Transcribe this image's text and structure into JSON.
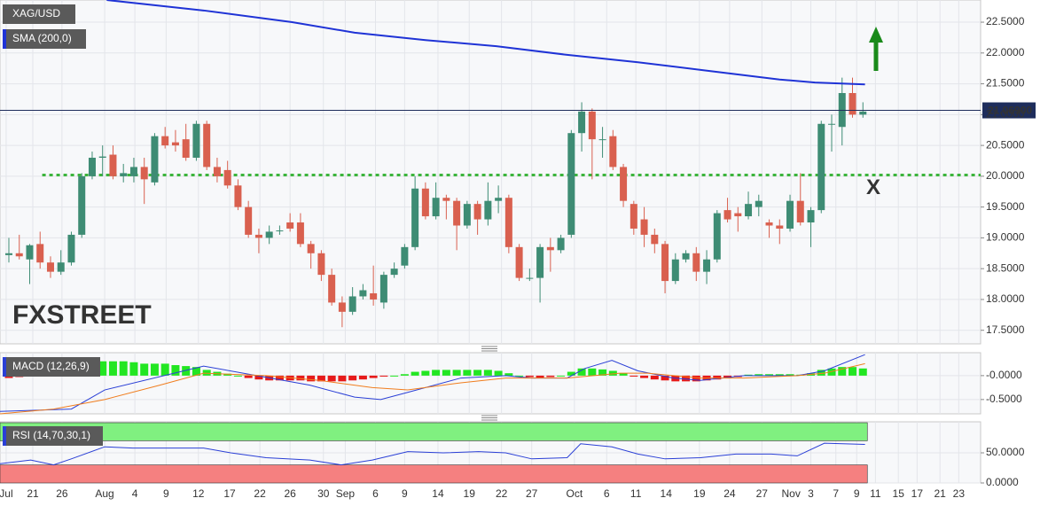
{
  "chart_data": [
    {
      "type": "candlestick",
      "label": "XAG/USD",
      "open": [
        18.72,
        18.75,
        18.65,
        18.9,
        18.6,
        18.45,
        18.6,
        19.05,
        20.0,
        20.3,
        20.35,
        20.0,
        20.0,
        20.15,
        19.9,
        20.65,
        20.55,
        20.6,
        20.3,
        20.85,
        20.15,
        20.1,
        19.85,
        19.5,
        19.05,
        19.0,
        19.12,
        19.25,
        19.25,
        18.9,
        18.75,
        18.4,
        17.95,
        17.8,
        18.05,
        18.1,
        17.95,
        18.4,
        18.55,
        18.85,
        19.8,
        19.35,
        19.65,
        19.6,
        19.2,
        19.55,
        19.3,
        19.6,
        19.65,
        18.85,
        18.35,
        18.35,
        18.85,
        18.8,
        19.05,
        20.7,
        21.05,
        20.6,
        20.65,
        20.15,
        19.55,
        19.3,
        19.05,
        18.9,
        18.3,
        18.65,
        18.75,
        18.45,
        18.65,
        19.45,
        19.4,
        19.35,
        19.5,
        19.25,
        19.2,
        19.15,
        19.6,
        19.25,
        19.45,
        20.85,
        20.8,
        21.35,
        21.0
      ],
      "high": [
        19.0,
        19.05,
        18.9,
        19.1,
        18.7,
        18.8,
        19.1,
        20.05,
        20.4,
        20.5,
        20.5,
        20.2,
        20.3,
        20.3,
        20.7,
        20.8,
        20.75,
        20.85,
        20.9,
        20.9,
        20.3,
        20.25,
        19.95,
        19.6,
        19.15,
        19.2,
        19.2,
        19.4,
        19.4,
        18.95,
        18.8,
        18.5,
        18.05,
        18.2,
        18.25,
        18.55,
        18.45,
        18.6,
        18.9,
        20.0,
        19.9,
        19.9,
        19.7,
        19.65,
        19.6,
        19.6,
        19.9,
        19.85,
        19.7,
        18.9,
        18.5,
        18.9,
        19.0,
        19.05,
        20.75,
        21.2,
        21.1,
        20.8,
        20.75,
        20.2,
        19.6,
        19.5,
        19.15,
        18.95,
        18.75,
        18.8,
        18.85,
        18.8,
        19.45,
        19.65,
        19.5,
        19.75,
        19.7,
        19.3,
        19.3,
        19.7,
        20.05,
        19.5,
        20.9,
        21.0,
        21.6,
        21.6,
        21.2
      ],
      "low": [
        18.6,
        18.65,
        18.25,
        18.5,
        18.35,
        18.4,
        18.55,
        19.0,
        19.95,
        20.0,
        19.95,
        19.9,
        19.9,
        19.55,
        19.85,
        20.45,
        20.4,
        20.25,
        20.25,
        20.1,
        19.9,
        19.8,
        19.45,
        19.0,
        18.75,
        18.9,
        19.05,
        19.1,
        18.85,
        18.5,
        18.3,
        17.9,
        17.55,
        17.75,
        18.0,
        17.9,
        17.85,
        18.35,
        18.5,
        18.8,
        19.3,
        19.3,
        19.3,
        18.8,
        19.15,
        19.05,
        19.2,
        19.4,
        18.75,
        18.3,
        18.3,
        17.95,
        18.45,
        18.75,
        19.0,
        20.4,
        19.95,
        20.3,
        20.1,
        19.5,
        19.05,
        18.85,
        18.75,
        18.1,
        18.25,
        18.6,
        18.3,
        18.25,
        18.6,
        19.25,
        19.1,
        19.3,
        19.35,
        19.0,
        18.9,
        19.1,
        19.2,
        18.85,
        19.4,
        20.4,
        20.5,
        20.95,
        20.95
      ],
      "close": [
        18.75,
        18.7,
        18.88,
        18.6,
        18.45,
        18.6,
        19.05,
        20.0,
        20.3,
        20.32,
        20.0,
        20.05,
        20.15,
        19.95,
        20.65,
        20.5,
        20.5,
        20.3,
        20.85,
        20.15,
        20.0,
        19.85,
        19.5,
        19.05,
        19.0,
        19.1,
        19.12,
        19.15,
        18.9,
        18.75,
        18.4,
        17.95,
        17.8,
        18.05,
        18.15,
        18.0,
        18.4,
        18.5,
        18.85,
        19.8,
        19.35,
        19.65,
        19.6,
        19.2,
        19.55,
        19.3,
        19.6,
        19.65,
        18.85,
        18.35,
        18.35,
        18.85,
        18.8,
        19.0,
        20.7,
        21.05,
        20.6,
        20.6,
        20.15,
        19.6,
        19.15,
        19.05,
        18.9,
        18.3,
        18.65,
        18.75,
        18.45,
        18.65,
        19.4,
        19.3,
        19.35,
        19.55,
        19.6,
        19.2,
        19.15,
        19.6,
        19.25,
        19.45,
        20.85,
        20.85,
        21.35,
        21.0,
        21.05
      ],
      "colors": {
        "up": "#3e8c74",
        "down": "#d9604f"
      },
      "sma": {
        "label": "SMA (200,0)",
        "color": "#1f33d6",
        "x": [
          9.4,
          18.7,
          27.2,
          33.2,
          40,
          46.8,
          53.6,
          60.4,
          67.2,
          74,
          77.4,
          82.2
        ],
        "values": [
          22.86,
          22.69,
          22.5,
          22.33,
          22.21,
          22.11,
          21.97,
          21.85,
          21.71,
          21.57,
          21.52,
          21.49
        ]
      },
      "last_price": {
        "value": 21.069,
        "label": "21.06900",
        "color": "#1e2d5c"
      },
      "level": {
        "value": 20.02,
        "x": 3.2,
        "color": "#3cb43c"
      },
      "annotation": {
        "text": "X",
        "x": 83,
        "y": 19.8,
        "color": "#3cb43c"
      },
      "watermark": [
        "FX",
        "STREET"
      ],
      "xlim": [
        -0.85,
        93.3
      ],
      "ylim": [
        17.28,
        22.86
      ],
      "yticks": [
        {
          "value": 17.5,
          "label": "17.5000"
        },
        {
          "value": 18,
          "label": "18.0000"
        },
        {
          "value": 18.5,
          "label": "18.5000"
        },
        {
          "value": 19,
          "label": "19.0000"
        },
        {
          "value": 19.5,
          "label": "19.5000"
        },
        {
          "value": 20,
          "label": "20.0000"
        },
        {
          "value": 20.5,
          "label": "20.5000"
        },
        {
          "value": 21,
          "label": "21.0000"
        },
        {
          "value": 21.5,
          "label": "21.5000"
        },
        {
          "value": 22,
          "label": "22.0000"
        },
        {
          "value": 22.5,
          "label": "22.5000"
        }
      ],
      "xticks": [
        {
          "value": -0.26,
          "label": "Jul"
        },
        {
          "value": 2.3,
          "label": "21"
        },
        {
          "value": 5.1,
          "label": "26"
        },
        {
          "value": 9.2,
          "label": "Aug"
        },
        {
          "value": 12.1,
          "label": "4"
        },
        {
          "value": 15.1,
          "label": "9"
        },
        {
          "value": 18.2,
          "label": "12"
        },
        {
          "value": 21.2,
          "label": "17"
        },
        {
          "value": 24.1,
          "label": "22"
        },
        {
          "value": 27,
          "label": "26"
        },
        {
          "value": 30.2,
          "label": "30"
        },
        {
          "value": 32.3,
          "label": "Sep"
        },
        {
          "value": 35.2,
          "label": "6"
        },
        {
          "value": 38,
          "label": "9"
        },
        {
          "value": 41.2,
          "label": "14"
        },
        {
          "value": 44.2,
          "label": "19"
        },
        {
          "value": 47.3,
          "label": "22"
        },
        {
          "value": 50.2,
          "label": "27"
        },
        {
          "value": 54.3,
          "label": "Oct"
        },
        {
          "value": 57.4,
          "label": "6"
        },
        {
          "value": 60.2,
          "label": "11"
        },
        {
          "value": 63.1,
          "label": "14"
        },
        {
          "value": 66.3,
          "label": "19"
        },
        {
          "value": 69.2,
          "label": "24"
        },
        {
          "value": 72.3,
          "label": "27"
        },
        {
          "value": 75.1,
          "label": "Nov"
        },
        {
          "value": 77,
          "label": "3"
        },
        {
          "value": 79.4,
          "label": "7"
        },
        {
          "value": 81.4,
          "label": "9"
        },
        {
          "value": 83.2,
          "label": "11"
        },
        {
          "value": 85.4,
          "label": "15"
        },
        {
          "value": 87.2,
          "label": "17"
        },
        {
          "value": 89.4,
          "label": "21"
        },
        {
          "value": 91.2,
          "label": "23"
        }
      ],
      "grid": true
    },
    {
      "type": "macd",
      "label": "MACD (12,26,9)",
      "histogram": [
        -0.05,
        -0.03,
        0.02,
        0.03,
        0.03,
        0.05,
        0.1,
        0.2,
        0.28,
        0.3,
        0.3,
        0.3,
        0.28,
        0.25,
        0.25,
        0.25,
        0.22,
        0.2,
        0.18,
        0.12,
        0.08,
        0.04,
        0.0,
        -0.05,
        -0.08,
        -0.1,
        -0.1,
        -0.1,
        -0.1,
        -0.12,
        -0.12,
        -0.12,
        -0.12,
        -0.1,
        -0.08,
        -0.05,
        -0.02,
        0.0,
        0.03,
        0.08,
        0.1,
        0.12,
        0.12,
        0.12,
        0.12,
        0.12,
        0.12,
        0.1,
        0.05,
        0.0,
        -0.03,
        -0.04,
        -0.03,
        0.0,
        0.08,
        0.15,
        0.15,
        0.13,
        0.1,
        0.05,
        -0.02,
        -0.05,
        -0.08,
        -0.1,
        -0.12,
        -0.12,
        -0.12,
        -0.1,
        -0.08,
        -0.05,
        -0.03,
        0.02,
        0.03,
        0.03,
        0.03,
        0.03,
        0.02,
        0.05,
        0.12,
        0.15,
        0.18,
        0.18,
        0.15
      ],
      "hist_colors": {
        "up": "#22e622",
        "down": "#e61a1a"
      },
      "lines": [
        {
          "color": "#2a3fd6",
          "x": [
            -0.85,
            6,
            9.2,
            18.7,
            23.8,
            28.9,
            33.2,
            35.7,
            38.3,
            43.4,
            47.7,
            50.2,
            53.6,
            55.3,
            57.9,
            60.4,
            63.8,
            66.4,
            70.6,
            75.7,
            78.3,
            82.2
          ],
          "values": [
            -0.75,
            -0.7,
            -0.3,
            0.2,
            0.0,
            -0.2,
            -0.45,
            -0.5,
            -0.35,
            -0.05,
            0.0,
            -0.05,
            -0.05,
            0.15,
            0.32,
            0.1,
            -0.05,
            -0.1,
            0.0,
            0.0,
            0.1,
            0.44
          ]
        },
        {
          "color": "#f07d1e",
          "x": [
            -0.85,
            4.3,
            9.2,
            14.5,
            18.7,
            24.7,
            29.8,
            34.9,
            38.3,
            43.4,
            47.7,
            53.6,
            58.7,
            61.3,
            66.4,
            70.6,
            75.7,
            78.3,
            82.2
          ],
          "values": [
            -0.8,
            -0.7,
            -0.5,
            -0.2,
            0.05,
            0.0,
            -0.1,
            -0.25,
            -0.3,
            -0.15,
            -0.05,
            -0.05,
            0.05,
            0.05,
            -0.05,
            -0.05,
            0.0,
            0.05,
            0.25
          ]
        }
      ],
      "ylim": [
        -0.8,
        0.48
      ],
      "yticks": [
        {
          "value": -0.5,
          "label": "-0.5000"
        },
        {
          "value": 0,
          "label": "-0.0000"
        }
      ],
      "grid": true
    },
    {
      "type": "line",
      "label": "RSI (14,70,30,1)",
      "line": {
        "color": "#2a3fd6",
        "x": [
          -0.85,
          2.1,
          4.3,
          6,
          9.2,
          11.9,
          16.2,
          18.7,
          21.3,
          24.7,
          28.9,
          31.9,
          34.9,
          38.3,
          41.7,
          45.1,
          47.7,
          50.2,
          53.6,
          54.9,
          57.9,
          60.4,
          63,
          66.4,
          69.8,
          73.2,
          75.7,
          78.3,
          82.2
        ],
        "values": [
          32,
          38,
          30,
          40,
          60,
          58,
          58,
          58,
          50,
          42,
          38,
          30,
          38,
          52,
          50,
          52,
          50,
          40,
          42,
          65,
          60,
          48,
          40,
          42,
          48,
          48,
          45,
          66,
          64
        ]
      },
      "bands": [
        {
          "from": 70,
          "to": 100,
          "color": "#80f080"
        },
        {
          "from": 0,
          "to": 30,
          "color": "#f58080"
        }
      ],
      "ylim": [
        0,
        101.5
      ],
      "yticks": [
        {
          "value": 0,
          "label": "0.0000"
        },
        {
          "value": 50,
          "label": "50.0000"
        }
      ],
      "grid": true
    }
  ]
}
